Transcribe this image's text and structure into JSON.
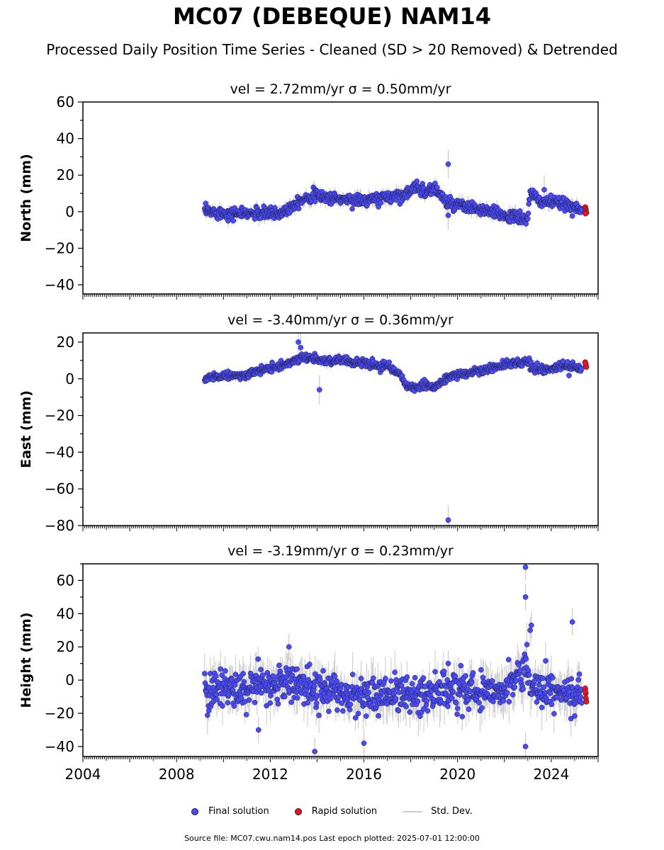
{
  "title": "MC07 (DEBEQUE) NAM14",
  "subtitle": "Processed Daily Position Time Series - Cleaned (SD > 20 Removed) & Detrended",
  "legend": {
    "final": "Final solution",
    "rapid": "Rapid solution",
    "sd": "Std. Dev."
  },
  "footer": "Source file: MC07.cwu.nam14.pos  Last epoch plotted: 2025-07-01 12:00:00",
  "colors": {
    "final": "#4b4bf5",
    "rapid": "#e8141e",
    "sd": "#c8c8c8",
    "edge": "#1c1c3c"
  },
  "chart_data": [
    {
      "type": "scatter",
      "panel": "north",
      "title": "vel = 2.72mm/yr   σ = 0.50mm/yr",
      "ylabel": "North (mm)",
      "xlim": [
        2004.0,
        2026.0
      ],
      "ylim": [
        -45,
        60
      ],
      "yticks": [
        -40,
        -20,
        0,
        20,
        40,
        60
      ],
      "xticks": [
        "2004",
        "2008",
        "2012",
        "2016",
        "2020",
        "2024"
      ],
      "trend": [
        [
          2009.2,
          0
        ],
        [
          2010.5,
          -1
        ],
        [
          2011.5,
          -1
        ],
        [
          2012.4,
          -1
        ],
        [
          2012.8,
          2
        ],
        [
          2013.2,
          6
        ],
        [
          2013.8,
          9
        ],
        [
          2015.0,
          7
        ],
        [
          2016.0,
          6
        ],
        [
          2017.0,
          8
        ],
        [
          2017.5,
          9
        ],
        [
          2018.0,
          11
        ],
        [
          2018.3,
          14
        ],
        [
          2018.6,
          11
        ],
        [
          2019.0,
          13
        ],
        [
          2019.3,
          9
        ],
        [
          2019.6,
          4
        ],
        [
          2020.2,
          3
        ],
        [
          2021.0,
          1
        ],
        [
          2022.0,
          -2
        ],
        [
          2022.9,
          -4
        ],
        [
          2023.0,
          -3
        ],
        [
          2023.1,
          10
        ],
        [
          2023.5,
          6
        ],
        [
          2024.5,
          4
        ],
        [
          2025.3,
          2
        ]
      ],
      "scatter_sd": 1.6,
      "outliers": [
        [
          2019.6,
          26
        ],
        [
          2019.6,
          -2
        ],
        [
          2023.7,
          12
        ]
      ],
      "rapid": [
        [
          2025.45,
          2.5
        ],
        [
          2025.47,
          1.5
        ],
        [
          2025.48,
          0.5
        ],
        [
          2025.5,
          -0.5
        ],
        [
          2025.46,
          -1
        ]
      ]
    },
    {
      "type": "scatter",
      "panel": "east",
      "title": "vel = -3.40mm/yr   σ = 0.36mm/yr",
      "ylabel": "East (mm)",
      "xlim": [
        2004.0,
        2026.0
      ],
      "ylim": [
        -80,
        25
      ],
      "yticks": [
        -80,
        -60,
        -40,
        -20,
        0,
        20
      ],
      "xticks": [
        "2004",
        "2008",
        "2012",
        "2016",
        "2020",
        "2024"
      ],
      "trend": [
        [
          2009.2,
          0
        ],
        [
          2010.0,
          2
        ],
        [
          2011.0,
          2
        ],
        [
          2011.8,
          5
        ],
        [
          2012.5,
          7
        ],
        [
          2013.2,
          11
        ],
        [
          2013.6,
          12
        ],
        [
          2014.2,
          10
        ],
        [
          2015.0,
          10
        ],
        [
          2016.0,
          9
        ],
        [
          2016.5,
          7
        ],
        [
          2017.0,
          7
        ],
        [
          2017.5,
          3
        ],
        [
          2017.8,
          -4
        ],
        [
          2018.3,
          -5
        ],
        [
          2018.6,
          -3
        ],
        [
          2019.0,
          -5
        ],
        [
          2019.4,
          -1
        ],
        [
          2019.8,
          2
        ],
        [
          2020.5,
          3
        ],
        [
          2021.5,
          6
        ],
        [
          2022.0,
          8
        ],
        [
          2023.0,
          9
        ],
        [
          2023.2,
          6
        ],
        [
          2023.8,
          5
        ],
        [
          2024.5,
          7
        ],
        [
          2025.3,
          6
        ]
      ],
      "scatter_sd": 1.1,
      "outliers": [
        [
          2013.2,
          20
        ],
        [
          2013.3,
          17
        ],
        [
          2014.1,
          -6
        ],
        [
          2019.6,
          -77
        ]
      ],
      "rapid": [
        [
          2025.45,
          9
        ],
        [
          2025.47,
          8
        ],
        [
          2025.48,
          7
        ],
        [
          2025.5,
          6.5
        ],
        [
          2025.46,
          8.5
        ]
      ]
    },
    {
      "type": "scatter",
      "panel": "height",
      "title": "vel = -3.19mm/yr   σ = 0.23mm/yr",
      "ylabel": "Height (mm)",
      "xlim": [
        2004.0,
        2026.0
      ],
      "ylim": [
        -46,
        70
      ],
      "yticks": [
        -40,
        -20,
        0,
        20,
        40,
        60
      ],
      "xticks": [
        "2004",
        "2008",
        "2012",
        "2016",
        "2020",
        "2024"
      ],
      "trend": [
        [
          2009.2,
          -7
        ],
        [
          2010.0,
          -4
        ],
        [
          2011.0,
          -6
        ],
        [
          2012.0,
          -3
        ],
        [
          2013.0,
          -1
        ],
        [
          2014.0,
          -5
        ],
        [
          2015.0,
          -8
        ],
        [
          2016.0,
          -10
        ],
        [
          2017.0,
          -8
        ],
        [
          2018.0,
          -9
        ],
        [
          2019.0,
          -7
        ],
        [
          2020.0,
          -6
        ],
        [
          2021.0,
          -6
        ],
        [
          2022.0,
          -4
        ],
        [
          2022.5,
          2
        ],
        [
          2022.9,
          8
        ],
        [
          2023.2,
          -4
        ],
        [
          2024.0,
          -8
        ],
        [
          2025.3,
          -9
        ]
      ],
      "scatter_sd": 5.5,
      "outliers": [
        [
          2012.8,
          20
        ],
        [
          2013.9,
          -43
        ],
        [
          2011.5,
          -30
        ],
        [
          2016.0,
          -38
        ],
        [
          2022.9,
          68
        ],
        [
          2022.9,
          50
        ],
        [
          2022.9,
          -40
        ],
        [
          2023.1,
          30
        ],
        [
          2023.15,
          33
        ],
        [
          2024.9,
          35
        ],
        [
          2019.6,
          10
        ],
        [
          2020.2,
          -22
        ]
      ],
      "rapid": [
        [
          2025.45,
          -5
        ],
        [
          2025.47,
          -8
        ],
        [
          2025.48,
          -11
        ],
        [
          2025.5,
          -13
        ],
        [
          2025.46,
          -7
        ]
      ]
    }
  ]
}
